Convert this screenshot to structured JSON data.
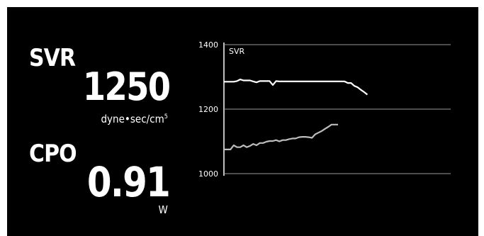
{
  "parameters": [
    {
      "name": "SVR",
      "value": "1250",
      "unit": "dyne•sec/cm",
      "unit_superscript": "5"
    },
    {
      "name": "CPO",
      "value": "0.91",
      "unit": "W"
    }
  ],
  "colors": {
    "background": "#000000",
    "foreground": "#ffffff",
    "cpo_trend": "#bdbdbd",
    "gridline": "#9a9a9a"
  },
  "chart_data": {
    "type": "line",
    "title": "SVR",
    "xlabel": "",
    "ylabel": "",
    "ylim": [
      1000,
      1400
    ],
    "ytick_labels": [
      "1400",
      "1200",
      "1000"
    ],
    "yticks": [
      1400,
      1200,
      1000
    ],
    "grid": true,
    "x": [
      0,
      1,
      2,
      3,
      4,
      5,
      6,
      7,
      8,
      9,
      10,
      11,
      12,
      13,
      14,
      15,
      16,
      17,
      18,
      19,
      20,
      21,
      22,
      23,
      24,
      25,
      26,
      27,
      28,
      29,
      30,
      31,
      32,
      33,
      34,
      35,
      36,
      37,
      38,
      39,
      40,
      41,
      42,
      43,
      44
    ],
    "series": [
      {
        "name": "SVR",
        "color": "#ffffff",
        "values": [
          1285,
          1285,
          1285,
          1285,
          1287,
          1292,
          1289,
          1289,
          1289,
          1286,
          1283,
          1287,
          1287,
          1287,
          1287,
          1275,
          1287,
          1286,
          1286,
          1286,
          1286,
          1286,
          1286,
          1286,
          1286,
          1286,
          1286,
          1286,
          1286,
          1286,
          1286,
          1286,
          1286,
          1286,
          1286,
          1286,
          1286,
          1286,
          1281,
          1281,
          1272,
          1268,
          1260,
          1253,
          1245
        ],
        "x": [
          0,
          1,
          2,
          3,
          4,
          5,
          6,
          7,
          8,
          9,
          10,
          11,
          12,
          13,
          14,
          15,
          16,
          17,
          18,
          19,
          20,
          21,
          22,
          23,
          24,
          25,
          26,
          27,
          28,
          29,
          30,
          31,
          32,
          33,
          34,
          35,
          36,
          37,
          38,
          39,
          40,
          41,
          42,
          43,
          44
        ]
      },
      {
        "color": "#bdbdbd",
        "values": [
          1075,
          1075,
          1075,
          1088,
          1082,
          1082,
          1088,
          1082,
          1086,
          1092,
          1088,
          1095,
          1095,
          1099,
          1101,
          1101,
          1104,
          1100,
          1104,
          1104,
          1107,
          1109,
          1109,
          1113,
          1114,
          1114,
          1113,
          1111,
          1122,
          1127,
          1132,
          1139,
          1145,
          1152,
          1152,
          1152
        ],
        "x": [
          0,
          1,
          2,
          3,
          4,
          5,
          6,
          7,
          8,
          9,
          10,
          11,
          12,
          13,
          14,
          15,
          16,
          17,
          18,
          19,
          20,
          21,
          22,
          23,
          24,
          25,
          26,
          27,
          28,
          29,
          30,
          31,
          32,
          33,
          34,
          35
        ]
      }
    ]
  }
}
